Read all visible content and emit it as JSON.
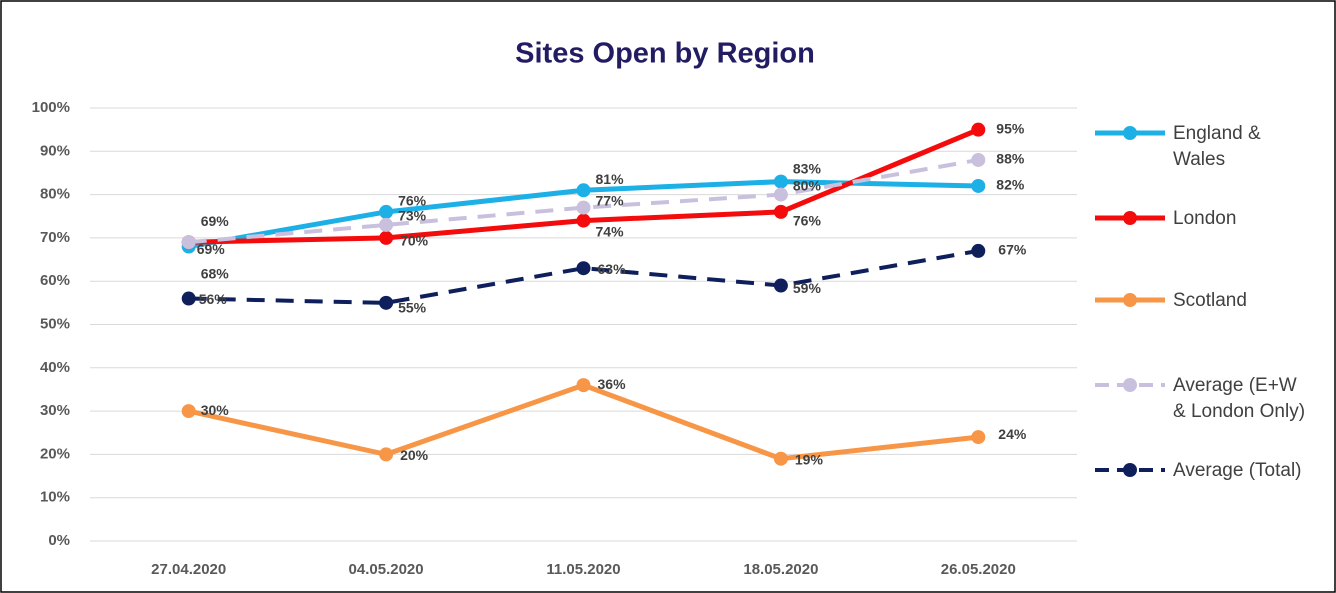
{
  "chart_data": {
    "type": "line",
    "title": "Sites Open by Region",
    "categories": [
      "27.04.2020",
      "04.05.2020",
      "11.05.2020",
      "18.05.2020",
      "26.05.2020"
    ],
    "series": [
      {
        "name": "England & Wales",
        "color": "#1cb0e6",
        "dashed": false,
        "values": [
          68,
          76,
          81,
          83,
          82
        ],
        "value_labels": [
          "68%",
          "76%",
          "81%",
          "83%",
          "82%"
        ]
      },
      {
        "name": "London",
        "color": "#f40b0b",
        "dashed": false,
        "values": [
          69,
          70,
          74,
          76,
          95
        ],
        "value_labels": [
          "69%",
          "70%",
          "74%",
          "76%",
          "95%"
        ]
      },
      {
        "name": "Scotland",
        "color": "#f79646",
        "dashed": false,
        "values": [
          30,
          20,
          36,
          19,
          24
        ],
        "value_labels": [
          "30%",
          "20%",
          "36%",
          "19%",
          "24%"
        ]
      },
      {
        "name": "Average (E+W & London Only)",
        "color": "#c9c0dd",
        "dashed": true,
        "values": [
          69,
          73,
          77,
          80,
          88
        ],
        "value_labels": [
          "69%",
          "73%",
          "77%",
          "80%",
          "88%"
        ]
      },
      {
        "name": "Average (Total)",
        "color": "#0e1f5b",
        "dashed": true,
        "values": [
          56,
          55,
          63,
          59,
          67
        ],
        "value_labels": [
          "56%",
          "55%",
          "63%",
          "59%",
          "67%"
        ]
      }
    ],
    "ylim": [
      0,
      100
    ],
    "yticks": [
      {
        "value": 0,
        "label": "0%"
      },
      {
        "value": 10,
        "label": "10%"
      },
      {
        "value": 20,
        "label": "20%"
      },
      {
        "value": 30,
        "label": "30%"
      },
      {
        "value": 40,
        "label": "40%"
      },
      {
        "value": 50,
        "label": "50%"
      },
      {
        "value": 60,
        "label": "60%"
      },
      {
        "value": 70,
        "label": "70%"
      },
      {
        "value": 80,
        "label": "80%"
      },
      {
        "value": 90,
        "label": "90%"
      },
      {
        "value": 100,
        "label": "100%"
      }
    ],
    "grid": true,
    "legend": "right"
  }
}
